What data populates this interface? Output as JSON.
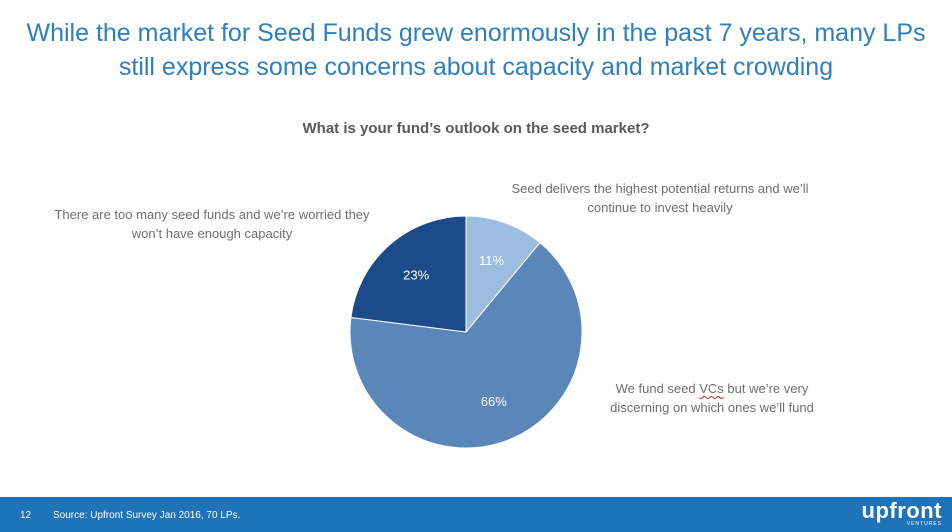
{
  "header": {
    "title": "While the market for Seed Funds grew enormously in the past 7 years, many LPs still express some concerns about capacity and market crowding"
  },
  "chart_data": {
    "type": "pie",
    "title": "What is your fund’s outlook on the seed market?",
    "slices": [
      {
        "label": "Seed delivers the highest potential returns and we’ll continue to invest heavily",
        "value": 11,
        "display": "11%",
        "color": "#9bbde0"
      },
      {
        "label": "We fund seed VCs but we’re very discerning on which ones we’ll fund",
        "value": 66,
        "display": "66%",
        "color": "#5b87b8"
      },
      {
        "label": "There are too many seed funds and we’re worried they won’t have enough capacity",
        "value": 23,
        "display": "23%",
        "color": "#1c4b8a"
      }
    ],
    "annotations": {
      "slice_a": [
        "Seed delivers the highest potential returns and we’ll",
        "continue to invest heavily"
      ],
      "slice_b_pre": "We fund seed ",
      "slice_b_mark": "VCs",
      "slice_b_post": " but we’re very",
      "slice_b_line2": "discerning on which ones we’ll fund",
      "slice_c": [
        "There are too many seed funds and we’re worried they",
        "won’t have enough capacity"
      ]
    }
  },
  "footer": {
    "page_number": "12",
    "source": "Source: Upfront Survey Jan 2016, 70 LPs.",
    "logo_word": "upfront",
    "logo_sub": "VENTURES"
  }
}
